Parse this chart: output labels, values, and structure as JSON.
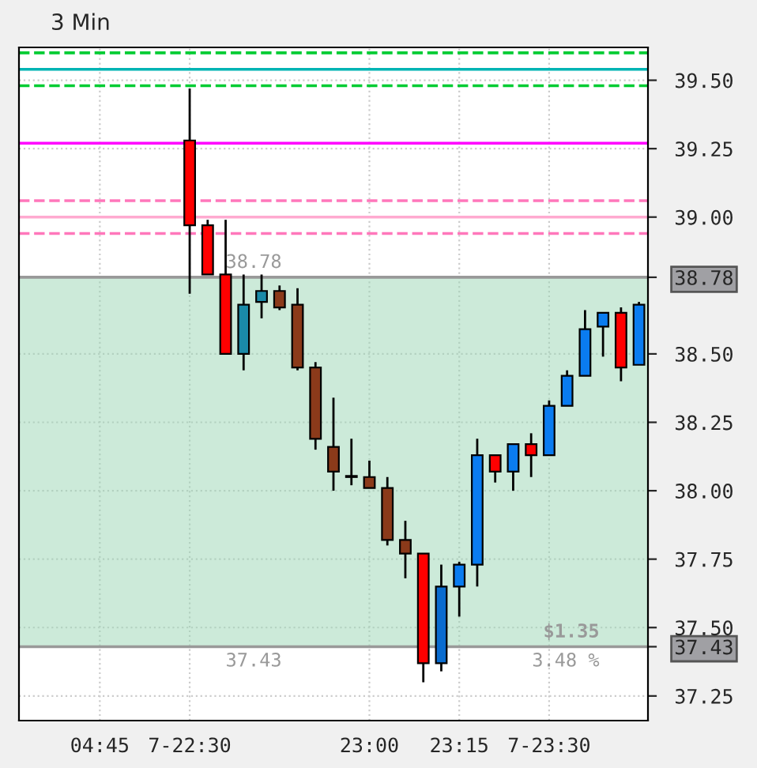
{
  "chart_data": {
    "type": "candlestick",
    "title": "3 Min",
    "categories": [
      null,
      null,
      null,
      null,
      "04:45",
      null,
      null,
      null,
      null,
      "7-22:30",
      null,
      null,
      null,
      null,
      null,
      null,
      null,
      null,
      null,
      "23:00",
      null,
      null,
      null,
      null,
      "23:15",
      null,
      null,
      null,
      null,
      "7-23:30",
      null,
      null,
      null,
      null,
      null
    ],
    "ohlc": [
      null,
      null,
      null,
      null,
      null,
      null,
      null,
      null,
      null,
      [
        39.28,
        39.47,
        38.72,
        38.97
      ],
      [
        38.97,
        38.99,
        38.79,
        38.79
      ],
      [
        38.79,
        38.99,
        38.5,
        38.5
      ],
      [
        38.5,
        38.79,
        38.44,
        38.68
      ],
      [
        38.69,
        38.79,
        38.63,
        38.73
      ],
      [
        38.73,
        38.75,
        38.66,
        38.67
      ],
      [
        38.68,
        38.74,
        38.44,
        38.45
      ],
      [
        38.45,
        38.47,
        38.15,
        38.19
      ],
      [
        38.16,
        38.34,
        38.0,
        38.07
      ],
      [
        38.05,
        38.19,
        38.02,
        38.05
      ],
      [
        38.05,
        38.11,
        38.01,
        38.01
      ],
      [
        38.01,
        38.05,
        37.8,
        37.82
      ],
      [
        37.82,
        37.89,
        37.68,
        37.77
      ],
      [
        37.77,
        37.77,
        37.3,
        37.37
      ],
      [
        37.37,
        37.73,
        37.34,
        37.65
      ],
      [
        37.65,
        37.74,
        37.54,
        37.73
      ],
      [
        37.73,
        38.19,
        37.65,
        38.13
      ],
      [
        38.13,
        38.13,
        38.03,
        38.07
      ],
      [
        38.07,
        38.17,
        38.0,
        38.17
      ],
      [
        38.17,
        38.21,
        38.05,
        38.13
      ],
      [
        38.13,
        38.33,
        38.13,
        38.31
      ],
      [
        38.31,
        38.44,
        38.31,
        38.42
      ],
      [
        38.42,
        38.66,
        38.42,
        38.59
      ],
      [
        38.6,
        38.65,
        38.49,
        38.65
      ],
      [
        38.65,
        38.67,
        38.4,
        38.45
      ],
      [
        38.46,
        38.69,
        38.46,
        38.68
      ]
    ],
    "colors": [
      null,
      null,
      null,
      null,
      null,
      null,
      null,
      null,
      null,
      "#ff0000",
      "#ff0000",
      "#ff0000",
      "#1a8aa8",
      "#1a8aa8",
      "#8b3a1a",
      "#8b3a1a",
      "#8b3a1a",
      "#8b3a1a",
      "#8b3a1a",
      "#8b3a1a",
      "#8b3a1a",
      "#8b3a1a",
      "#ff0000",
      "#0a6ccf",
      "#0a7cf0",
      "#0a7cf0",
      "#ff0000",
      "#0a7cf0",
      "#ff0000",
      "#0a7cf0",
      "#0a7cf0",
      "#0a7cf0",
      "#0a7cf0",
      "#ff0000",
      "#0a7cf0"
    ],
    "ylim": [
      37.16,
      39.62
    ],
    "yticks": [
      37.25,
      {
        "value": 37.43,
        "label": "37.43"
      },
      {
        "value": 37.5,
        "label": "37.50"
      },
      37.75,
      {
        "value": 38,
        "label": "38.00"
      },
      38.25,
      {
        "value": 38.5,
        "label": "38.50"
      },
      {
        "value": 38.78,
        "label": "38.78"
      },
      {
        "value": 39,
        "label": "39.00"
      },
      39.25,
      {
        "value": 39.5,
        "label": "39.50"
      }
    ],
    "ref_lines": [
      {
        "axis": "y",
        "value": 39.6,
        "color": "#00cc33",
        "line_style": "dashed"
      },
      {
        "axis": "y",
        "value": 39.54,
        "color": "#00b4b4",
        "line_style": "solid"
      },
      {
        "axis": "y",
        "value": 39.48,
        "color": "#00cc33",
        "line_style": "dashed"
      },
      {
        "axis": "y",
        "value": 39.27,
        "color": "#ff00ff",
        "line_style": "solid"
      },
      {
        "axis": "y",
        "value": 39.06,
        "color": "#ff77bb",
        "line_style": "dashed"
      },
      {
        "axis": "y",
        "value": 39.0,
        "color": "#ffaad0",
        "line_style": "solid"
      },
      {
        "axis": "y",
        "value": 38.94,
        "color": "#ff77bb",
        "line_style": "dashed"
      }
    ],
    "bands": [
      {
        "axis": "y",
        "from": 37.43,
        "to": 38.78,
        "color": "#9ad6b4"
      }
    ],
    "annotations": [
      {
        "text": "38.78",
        "y": 38.78
      },
      {
        "text": "37.43",
        "y": 37.43
      },
      {
        "text": "$1.35",
        "y": 37.43
      },
      {
        "text": "3.48 %",
        "y": 37.43
      }
    ],
    "grid": true,
    "legend": false
  }
}
